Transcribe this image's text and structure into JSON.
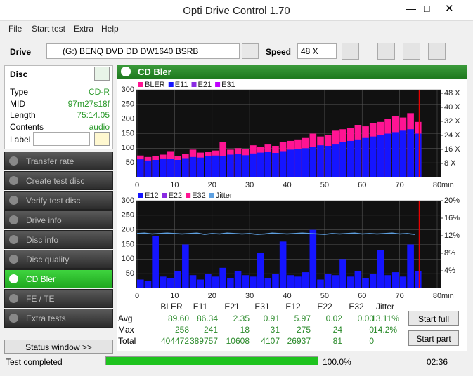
{
  "window": {
    "title": "Opti Drive Control 1.70"
  },
  "menu": [
    "File",
    "Start test",
    "Extra",
    "Help"
  ],
  "toolbar": {
    "drive_label": "Drive",
    "drive": "(G:)   BENQ DVD DD DW1640 BSRB",
    "speed_label": "Speed",
    "speed": "48 X"
  },
  "disc": {
    "title": "Disc",
    "fields": [
      {
        "label": "Type",
        "value": "CD-R"
      },
      {
        "label": "MID",
        "value": "97m27s18f"
      },
      {
        "label": "Length",
        "value": "75:14.05"
      },
      {
        "label": "Contents",
        "value": "audio"
      }
    ],
    "label": "Label"
  },
  "nav": {
    "items": [
      "Transfer rate",
      "Create test disc",
      "Verify test disc",
      "Drive info",
      "Disc info",
      "Disc quality",
      "CD Bler",
      "FE / TE",
      "Extra tests"
    ],
    "active": 6,
    "status_button": "Status window >>"
  },
  "panel_title": "CD Bler",
  "charts": [
    {
      "type": "bar",
      "x": [
        0,
        2,
        4,
        6,
        8,
        10,
        12,
        14,
        16,
        18,
        20,
        22,
        24,
        26,
        28,
        30,
        32,
        34,
        36,
        38,
        40,
        42,
        44,
        46,
        48,
        50,
        52,
        54,
        56,
        58,
        60,
        62,
        64,
        66,
        68,
        70,
        72,
        74
      ],
      "series": [
        {
          "name": "BLER",
          "color": "#ff1493",
          "values": [
            75,
            70,
            72,
            78,
            90,
            74,
            80,
            95,
            85,
            88,
            92,
            120,
            95,
            100,
            98,
            110,
            105,
            115,
            108,
            120,
            125,
            130,
            135,
            150,
            140,
            145,
            160,
            165,
            170,
            180,
            175,
            185,
            190,
            200,
            210,
            205,
            220,
            190
          ]
        },
        {
          "name": "E11",
          "color": "#1515ff",
          "values": [
            62,
            58,
            60,
            65,
            63,
            60,
            66,
            70,
            68,
            72,
            75,
            73,
            78,
            80,
            76,
            82,
            85,
            88,
            84,
            90,
            95,
            98,
            100,
            105,
            110,
            108,
            115,
            120,
            125,
            130,
            135,
            140,
            145,
            150,
            155,
            160,
            165,
            150
          ]
        },
        {
          "name": "E21",
          "color": "#8a2be2"
        },
        {
          "name": "E31",
          "color": "#c000ff"
        }
      ],
      "xlim": [
        0,
        80
      ],
      "xticks": [
        0,
        10,
        20,
        30,
        40,
        50,
        60,
        70,
        80
      ],
      "x_unit": "min",
      "ylim": [
        0,
        300
      ],
      "yticks": [
        50,
        100,
        150,
        200,
        250,
        300
      ],
      "y2lim": [
        0,
        50
      ],
      "y2ticks": [
        {
          "value": 8,
          "label": "8 X"
        },
        {
          "value": 16,
          "label": "16 X"
        },
        {
          "value": 24,
          "label": "24 X"
        },
        {
          "value": 32,
          "label": "32 X"
        },
        {
          "value": 40,
          "label": "40 X"
        },
        {
          "value": 48,
          "label": "48 X"
        }
      ],
      "grid": true,
      "marker_x": 75.2
    },
    {
      "type": "bar",
      "x": [
        0,
        2,
        4,
        6,
        8,
        10,
        12,
        14,
        16,
        18,
        20,
        22,
        24,
        26,
        28,
        30,
        32,
        34,
        36,
        38,
        40,
        42,
        44,
        46,
        48,
        50,
        52,
        54,
        56,
        58,
        60,
        62,
        64,
        66,
        68,
        70,
        72,
        74
      ],
      "series": [
        {
          "name": "E12",
          "color": "#1515ff",
          "values": [
            30,
            25,
            180,
            40,
            35,
            60,
            150,
            45,
            30,
            50,
            40,
            70,
            35,
            60,
            45,
            40,
            120,
            35,
            50,
            160,
            45,
            40,
            55,
            200,
            30,
            50,
            45,
            100,
            40,
            60,
            35,
            50,
            130,
            45,
            55,
            40,
            150,
            60
          ]
        },
        {
          "name": "E22",
          "color": "#8a2be2"
        },
        {
          "name": "E32",
          "color": "#ff1493"
        },
        {
          "name": "Jitter",
          "color": "#5ea0e0",
          "axis": "y2",
          "values": [
            12.5,
            12.6,
            12.4,
            12.5,
            12.6,
            12.5,
            12.4,
            12.5,
            12.6,
            12.3,
            12.5,
            12.4,
            12.6,
            12.5,
            12.4,
            12.5,
            12.3,
            12.4,
            12.6,
            12.5,
            12.4,
            12.5,
            12.6,
            12.5,
            12.4,
            12.3,
            12.5,
            12.4,
            12.5,
            12.6,
            12.4,
            12.5,
            12.4,
            12.5,
            12.6,
            12.4,
            12.5,
            12.3
          ]
        }
      ],
      "xlim": [
        0,
        80
      ],
      "xticks": [
        0,
        10,
        20,
        30,
        40,
        50,
        60,
        70,
        80
      ],
      "x_unit": "min",
      "ylim": [
        0,
        300
      ],
      "yticks": [
        50,
        100,
        150,
        200,
        250,
        300
      ],
      "y2lim": [
        0,
        20
      ],
      "y2ticks": [
        {
          "value": 4,
          "label": "4%"
        },
        {
          "value": 8,
          "label": "8%"
        },
        {
          "value": 12,
          "label": "12%"
        },
        {
          "value": 16,
          "label": "16%"
        },
        {
          "value": 20,
          "label": "20%"
        }
      ],
      "grid": true,
      "marker_x": 75.2
    }
  ],
  "stats": {
    "columns": [
      "BLER",
      "E11",
      "E21",
      "E31",
      "E12",
      "E22",
      "E32",
      "Jitter"
    ],
    "rows": [
      {
        "label": "Avg",
        "values": [
          "89.60",
          "86.34",
          "2.35",
          "0.91",
          "5.97",
          "0.02",
          "0.00",
          "13.11%"
        ]
      },
      {
        "label": "Max",
        "values": [
          "258",
          "241",
          "18",
          "31",
          "275",
          "24",
          "0",
          "14.2%"
        ]
      },
      {
        "label": "Total",
        "values": [
          "404472",
          "389757",
          "10608",
          "4107",
          "26937",
          "81",
          "0"
        ]
      }
    ]
  },
  "buttons": [
    "Start full",
    "Start part"
  ],
  "status": {
    "text": "Test completed",
    "progress": "100.0%",
    "time": "02:36"
  }
}
